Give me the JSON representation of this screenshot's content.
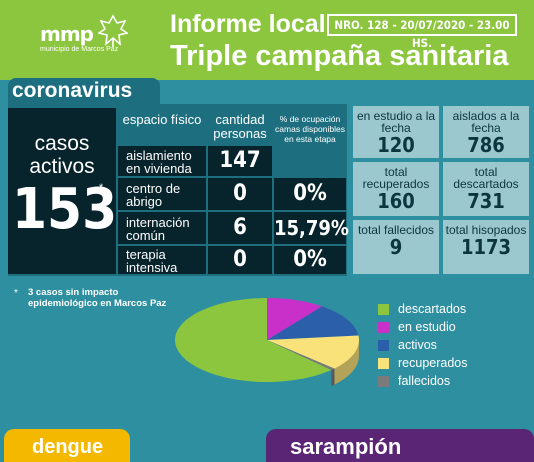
{
  "header": {
    "logo": "mmp",
    "logo_sub": "municipio de Marcos Paz",
    "title_top": "Informe local",
    "issue": "NRO. 128 - 20/07/2020 - 23.00 HS.",
    "title_main": "Triple campaña sanitaria"
  },
  "corona": {
    "label": "coronavirus",
    "casos_label": "casos activos",
    "casos_value": "153",
    "casos_star": "*",
    "headers": {
      "espacio": "espacio físico",
      "cantidad": "cantidad personas",
      "ocupacion": "% de ocupación camas disponibles en esta etapa"
    },
    "rows": [
      {
        "label": "aislamiento en vivienda",
        "cantidad": "147",
        "ocupacion": ""
      },
      {
        "label": "centro de abrigo",
        "cantidad": "0",
        "ocupacion": "0%"
      },
      {
        "label": "internación común",
        "cantidad": "6",
        "ocupacion": "15,79%"
      },
      {
        "label": "terapia intensiva",
        "cantidad": "0",
        "ocupacion": "0%"
      }
    ],
    "stats": [
      {
        "label": "en estudio a la fecha",
        "value": "120"
      },
      {
        "label": "aislados a la fecha",
        "value": "786"
      },
      {
        "label": "total recuperados",
        "value": "160"
      },
      {
        "label": "total descartados",
        "value": "731"
      },
      {
        "label": "total fallecidos",
        "value": "9"
      },
      {
        "label": "total hisopados",
        "value": "1173"
      }
    ],
    "footnote_star": "*",
    "footnote": "3 casos sin impacto epidemiológico en Marcos Paz"
  },
  "chart_data": {
    "type": "pie",
    "categories": [
      "descartados",
      "en estudio",
      "activos",
      "recuperados",
      "fallecidos"
    ],
    "values": [
      731,
      120,
      153,
      160,
      9
    ],
    "colors": [
      "#8cc63f",
      "#c930c9",
      "#2c5faa",
      "#f9e27a",
      "#7a7a7a"
    ]
  },
  "legend": [
    {
      "label": "descartados",
      "color": "#8cc63f"
    },
    {
      "label": "en estudio",
      "color": "#c930c9"
    },
    {
      "label": "activos",
      "color": "#2c5faa"
    },
    {
      "label": "recuperados",
      "color": "#f9e27a"
    },
    {
      "label": "fallecidos",
      "color": "#7a7a7a"
    }
  ],
  "bottom": {
    "dengue": "dengue",
    "sarampion": "sarampión"
  }
}
